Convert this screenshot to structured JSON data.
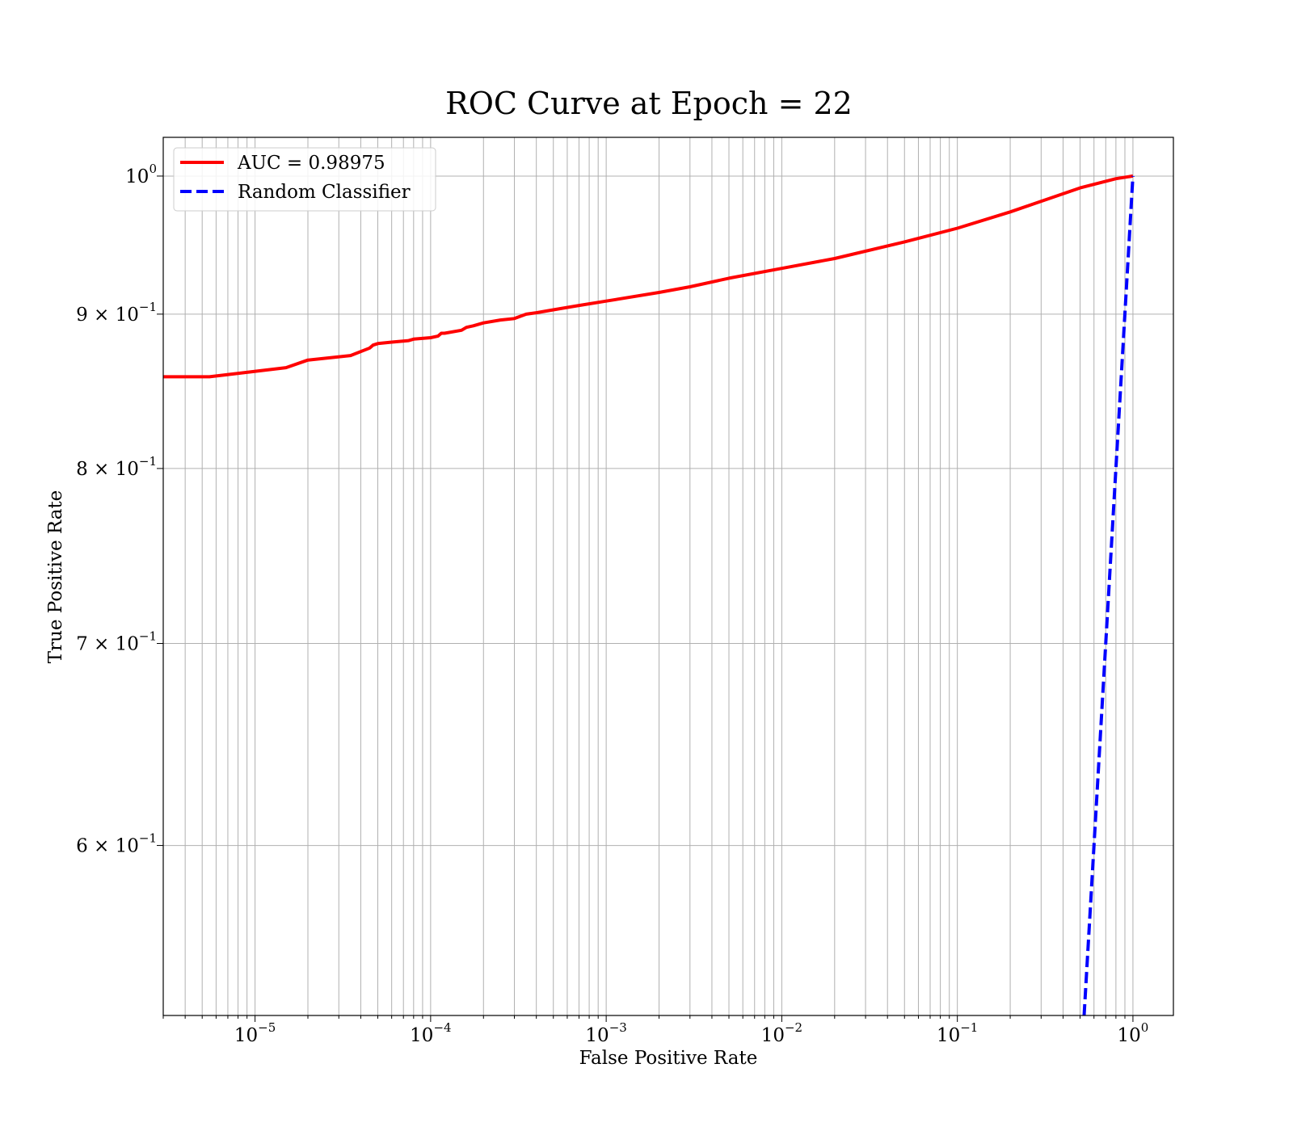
{
  "chart_data": {
    "type": "line",
    "title": "ROC Curve at Epoch = 22",
    "xlabel": "False Positive Rate",
    "ylabel": "True Positive Rate",
    "xscale": "log",
    "yscale": "log",
    "xlim": [
      3e-06,
      1.7
    ],
    "ylim": [
      0.527,
      1.03
    ],
    "grid": true,
    "grid_which": "both",
    "legend_position": "upper-left",
    "x_ticks": [
      {
        "value": 1e-05,
        "base": "10",
        "exp": "−5"
      },
      {
        "value": 0.0001,
        "base": "10",
        "exp": "−4"
      },
      {
        "value": 0.001,
        "base": "10",
        "exp": "−3"
      },
      {
        "value": 0.01,
        "base": "10",
        "exp": "−2"
      },
      {
        "value": 0.1,
        "base": "10",
        "exp": "−1"
      },
      {
        "value": 1,
        "base": "10",
        "exp": "0"
      }
    ],
    "y_ticks": [
      {
        "value": 1.0,
        "base": "10",
        "exp": "0"
      },
      {
        "value": 0.9,
        "base": "9 × 10",
        "exp": "−1"
      },
      {
        "value": 0.8,
        "base": "8 × 10",
        "exp": "−1"
      },
      {
        "value": 0.7,
        "base": "7 × 10",
        "exp": "−1"
      },
      {
        "value": 0.6,
        "base": "6 × 10",
        "exp": "−1"
      }
    ],
    "series": [
      {
        "name": "AUC = 0.98975",
        "color": "#ff0000",
        "style": "solid",
        "x": [
          3e-06,
          5.5e-06,
          1.5e-05,
          2e-05,
          3.5e-05,
          4.5e-05,
          4.7e-05,
          5e-05,
          6e-05,
          7.5e-05,
          8e-05,
          0.0001,
          0.00011,
          0.000115,
          0.00012,
          0.00015,
          0.00016,
          0.000175,
          0.0002,
          0.00025,
          0.0003,
          0.00035,
          0.0004,
          0.0005,
          0.0007,
          0.001,
          0.002,
          0.003,
          0.005,
          0.01,
          0.02,
          0.05,
          0.1,
          0.2,
          0.5,
          0.8,
          1.0
        ],
        "y": [
          0.858,
          0.858,
          0.864,
          0.869,
          0.872,
          0.877,
          0.879,
          0.88,
          0.881,
          0.882,
          0.883,
          0.884,
          0.885,
          0.887,
          0.887,
          0.889,
          0.891,
          0.892,
          0.894,
          0.896,
          0.897,
          0.9,
          0.901,
          0.903,
          0.906,
          0.909,
          0.915,
          0.919,
          0.925,
          0.932,
          0.939,
          0.951,
          0.961,
          0.973,
          0.991,
          0.998,
          1.0
        ]
      },
      {
        "name": "Random Classifier",
        "color": "#0000ff",
        "style": "dashed",
        "x": [
          0.527,
          1.0
        ],
        "y": [
          0.527,
          1.0
        ]
      }
    ]
  }
}
